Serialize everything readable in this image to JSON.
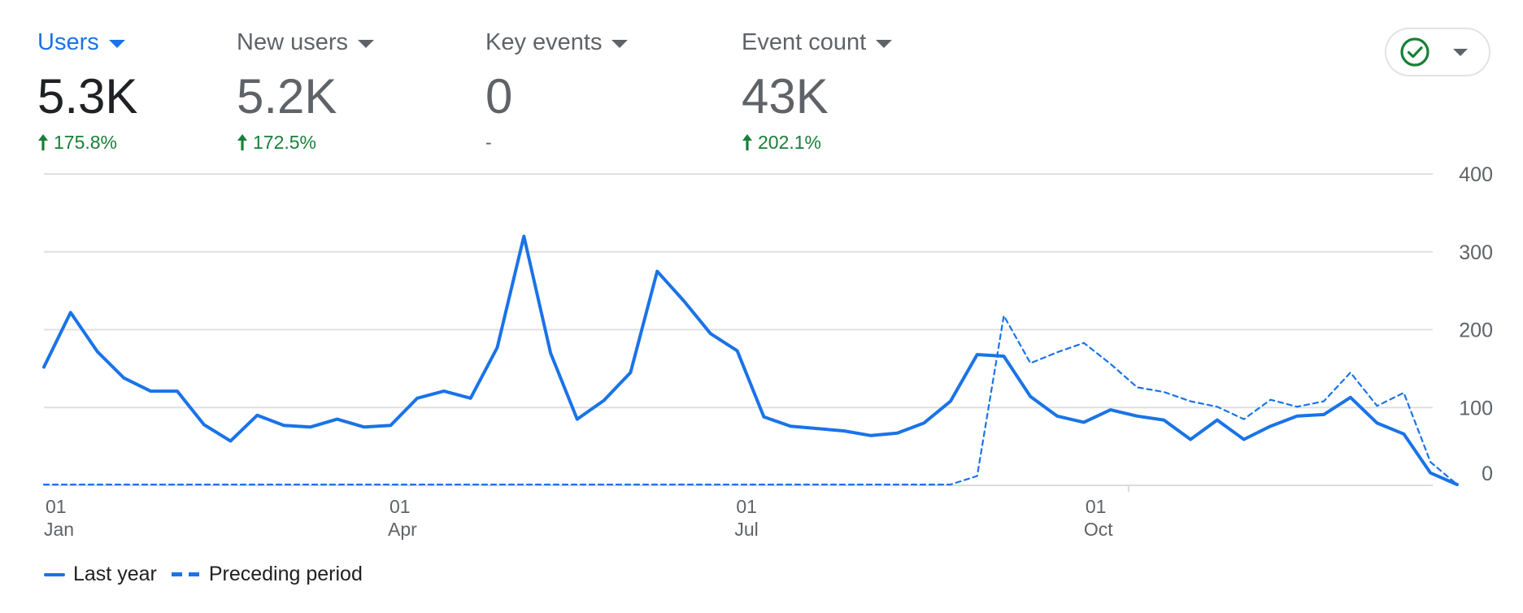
{
  "metrics": [
    {
      "label": "Users",
      "value": "5.3K",
      "change": "175.8%",
      "trend": "up",
      "active": true
    },
    {
      "label": "New users",
      "value": "5.2K",
      "change": "172.5%",
      "trend": "up",
      "active": false
    },
    {
      "label": "Key events",
      "value": "0",
      "change": "-",
      "trend": "none",
      "active": false
    },
    {
      "label": "Event count",
      "value": "43K",
      "change": "202.1%",
      "trend": "up",
      "active": false
    }
  ],
  "status_icon": "check-circle-icon",
  "colors": {
    "accent": "#1a73e8",
    "positive": "#188038",
    "status": "#188038",
    "grid": "#e0e0e0"
  },
  "chart_data": {
    "type": "line",
    "ylim": [
      0,
      400
    ],
    "y_ticks": [
      "0",
      "100",
      "200",
      "300",
      "400"
    ],
    "x_ticks": [
      {
        "day": "01",
        "month": "Jan",
        "week": 0
      },
      {
        "day": "01",
        "month": "Apr",
        "week": 12.9
      },
      {
        "day": "01",
        "month": "Jul",
        "week": 25.9
      },
      {
        "day": "01",
        "month": "Oct",
        "week": 39
      }
    ],
    "grid": true,
    "legend_position": "bottom-left",
    "series": [
      {
        "name": "Last year",
        "style": "solid",
        "values": [
          152,
          222,
          172,
          138,
          121,
          121,
          78,
          57,
          90,
          77,
          75,
          85,
          75,
          77,
          112,
          121,
          112,
          177,
          320,
          170,
          85,
          109,
          145,
          275,
          237,
          195,
          173,
          88,
          76,
          73,
          70,
          64,
          67,
          80,
          108,
          168,
          166,
          114,
          89,
          81,
          97,
          89,
          84,
          59,
          84,
          59,
          76,
          89,
          91,
          113,
          80,
          66,
          16,
          1
        ]
      },
      {
        "name": "Preceding period",
        "style": "dashed",
        "values": [
          1,
          1,
          1,
          1,
          1,
          1,
          1,
          1,
          1,
          1,
          1,
          1,
          1,
          1,
          1,
          1,
          1,
          1,
          1,
          1,
          1,
          1,
          1,
          1,
          1,
          1,
          1,
          1,
          1,
          1,
          1,
          1,
          1,
          1,
          1,
          12,
          218,
          157,
          171,
          183,
          156,
          126,
          120,
          108,
          101,
          85,
          110,
          101,
          108,
          145,
          102,
          119,
          30,
          1
        ]
      }
    ]
  },
  "legend": [
    {
      "label": "Last year",
      "style": "solid"
    },
    {
      "label": "Preceding period",
      "style": "dashed"
    }
  ]
}
